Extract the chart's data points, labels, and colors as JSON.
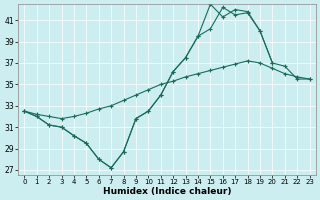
{
  "xlabel": "Humidex (Indice chaleur)",
  "bg_color": "#cceef0",
  "line_color": "#1a6b5a",
  "xlim": [
    -0.5,
    23.5
  ],
  "ylim": [
    26.5,
    42.5
  ],
  "yticks": [
    27,
    29,
    31,
    33,
    35,
    37,
    39,
    41
  ],
  "xticks": [
    0,
    1,
    2,
    3,
    4,
    5,
    6,
    7,
    8,
    9,
    10,
    11,
    12,
    13,
    14,
    15,
    16,
    17,
    18,
    19,
    20,
    21,
    22,
    23
  ],
  "line1_x": [
    0,
    1,
    2,
    3,
    4,
    5,
    6,
    7,
    8,
    9,
    10,
    11,
    12,
    13,
    14,
    15,
    16,
    17,
    18,
    19,
    20,
    21,
    22,
    23
  ],
  "line1_y": [
    32.5,
    32.2,
    32.0,
    31.8,
    32.0,
    32.3,
    32.7,
    33.0,
    33.5,
    34.0,
    34.5,
    35.0,
    35.3,
    35.7,
    36.0,
    36.3,
    36.6,
    36.9,
    37.2,
    37.0,
    36.5,
    36.0,
    35.7,
    35.5
  ],
  "line2_x": [
    0,
    1,
    2,
    3,
    4,
    5,
    6,
    7,
    8,
    9,
    10,
    11,
    12,
    13,
    14,
    15,
    16,
    17,
    18,
    19,
    20
  ],
  "line2_y": [
    32.5,
    32.0,
    31.2,
    31.0,
    30.2,
    29.5,
    28.0,
    27.2,
    28.7,
    31.8,
    32.5,
    34.0,
    36.2,
    37.5,
    39.5,
    40.2,
    42.2,
    41.5,
    41.7,
    40.0,
    37.0
  ],
  "line3_x": [
    0,
    1,
    2,
    3,
    4,
    5,
    6,
    7,
    8,
    9,
    10,
    11,
    12,
    13,
    14,
    15,
    16,
    17,
    18,
    19,
    20,
    21,
    22,
    23
  ],
  "line3_y": [
    32.5,
    32.0,
    31.2,
    31.0,
    30.2,
    29.5,
    28.0,
    27.2,
    28.7,
    31.8,
    32.5,
    34.0,
    36.2,
    37.5,
    39.5,
    42.5,
    41.3,
    42.0,
    41.8,
    40.0,
    37.0,
    36.7,
    35.5,
    35.5
  ]
}
